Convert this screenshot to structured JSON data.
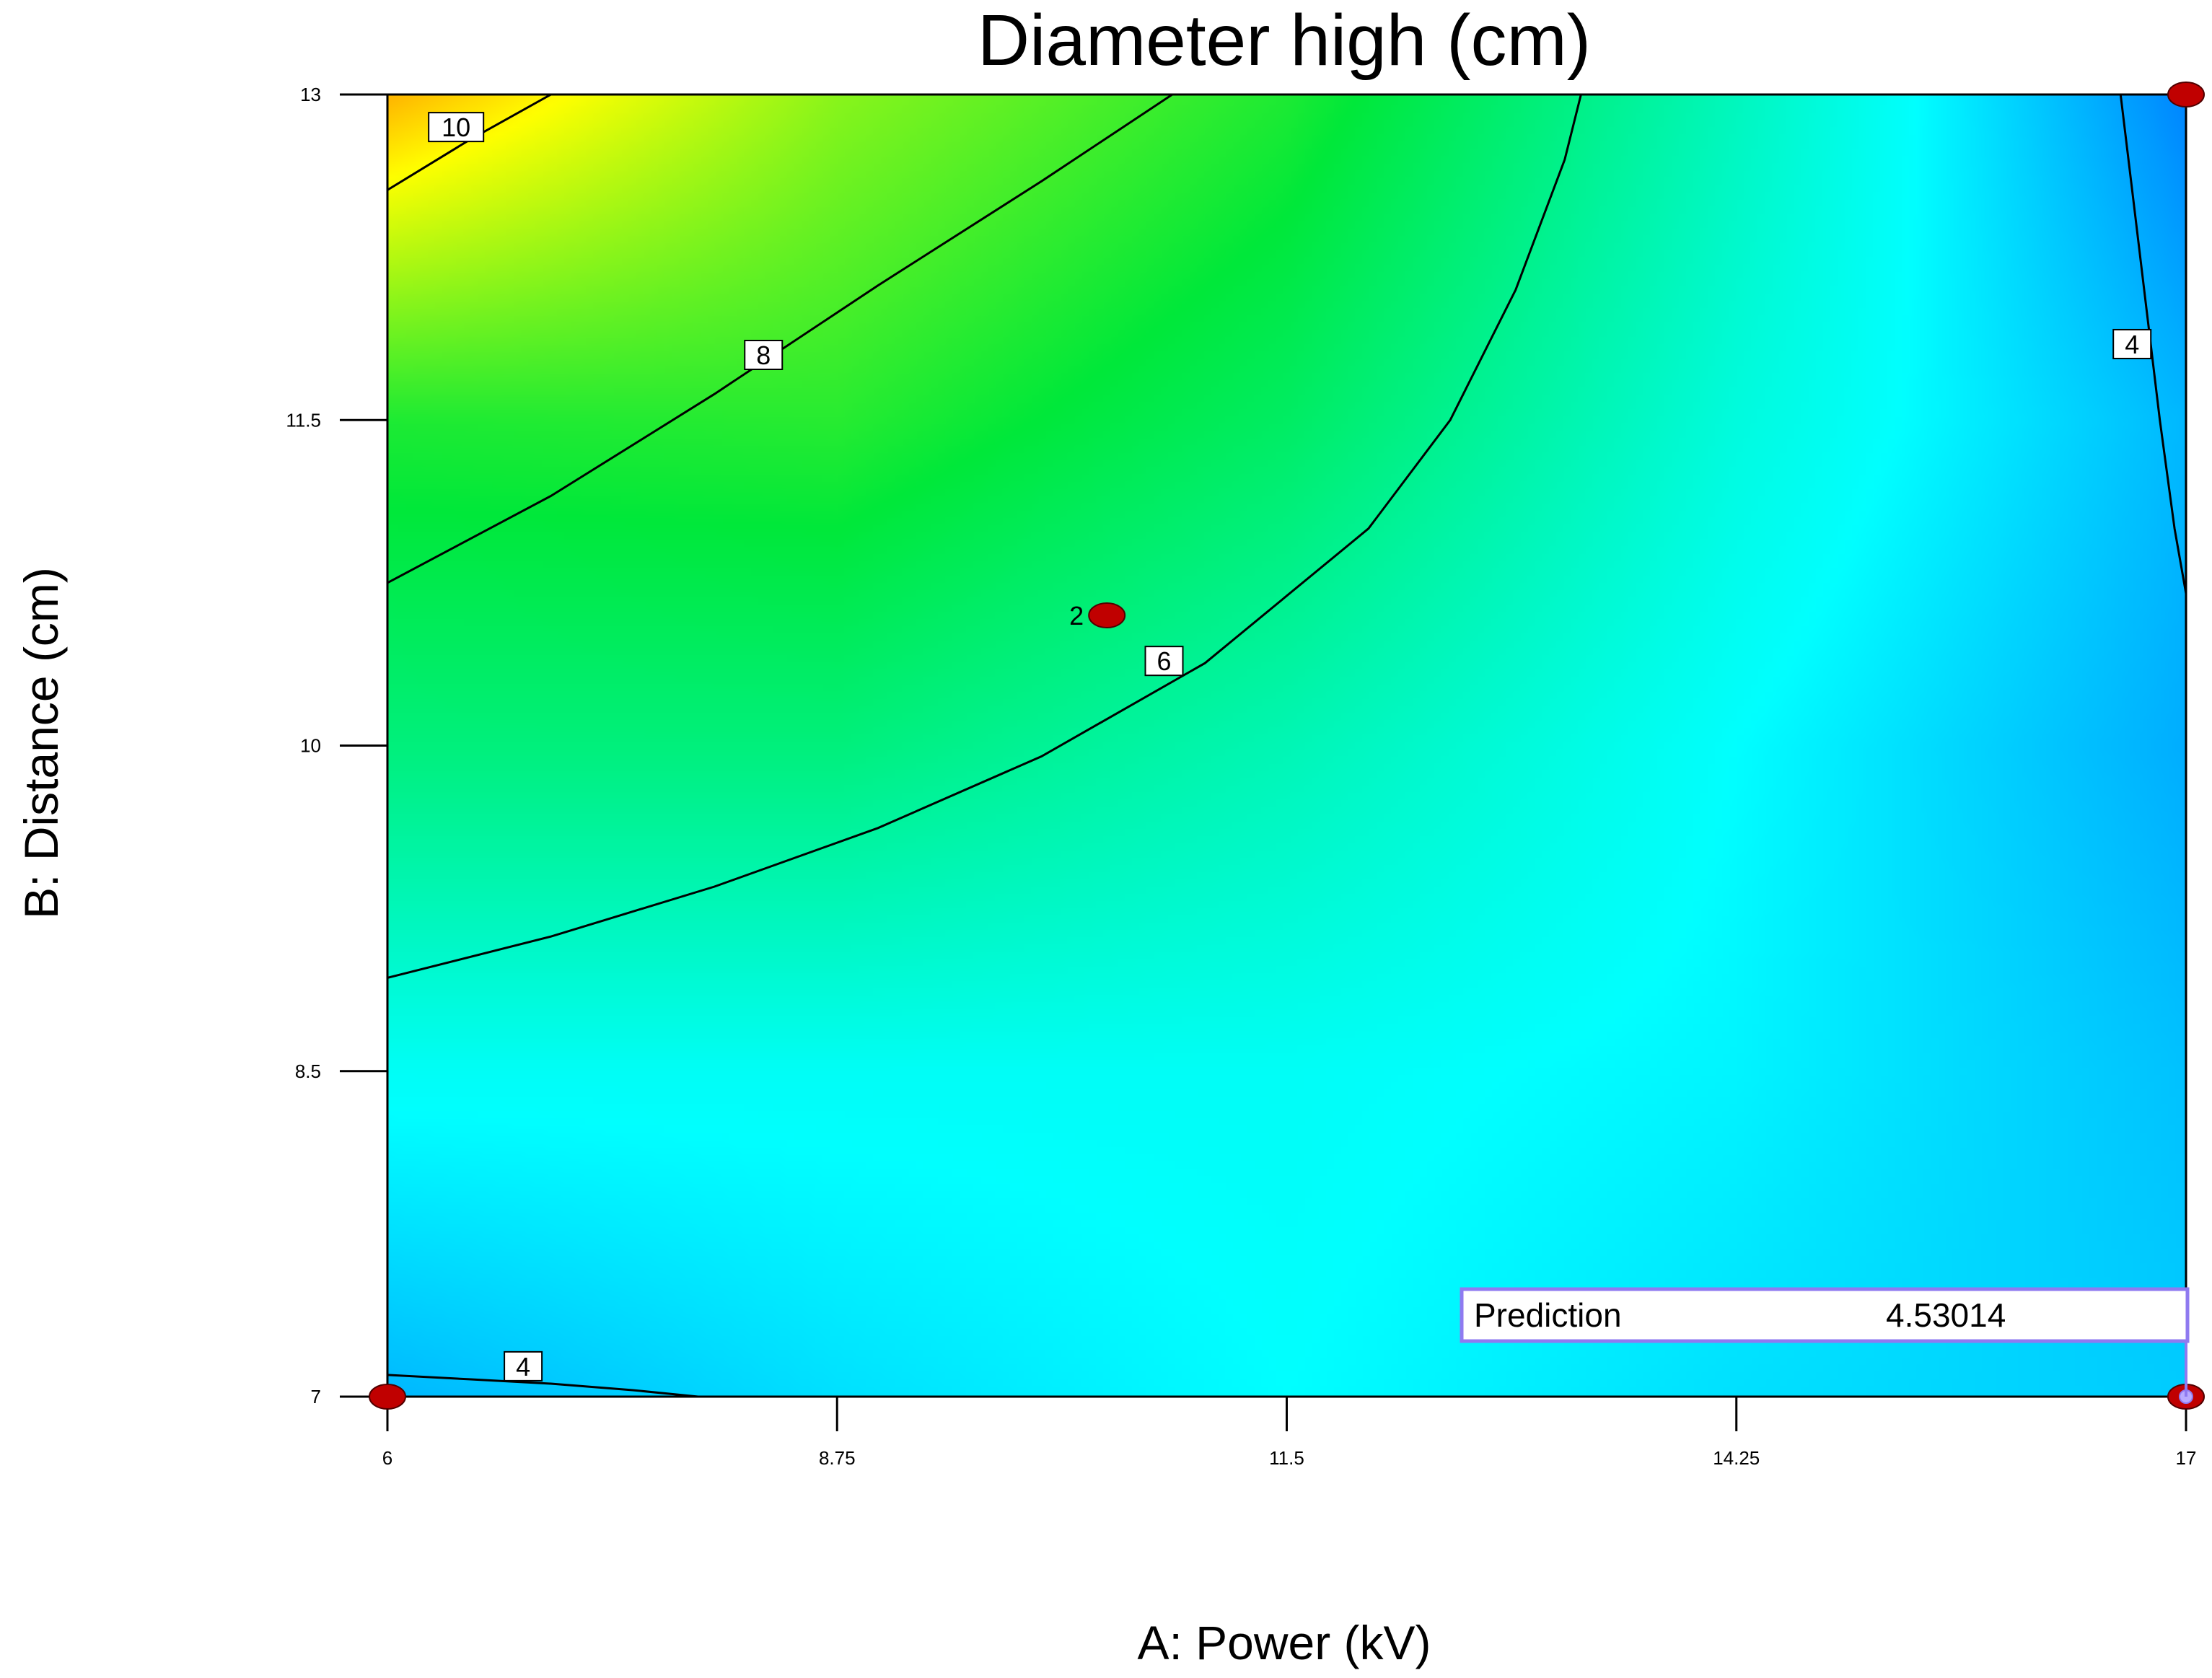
{
  "chart_data": {
    "type": "contour",
    "title": "Diameter high (cm)",
    "xlabel": "A: Power (kV)",
    "ylabel": "B: Distance (cm)",
    "xlim": [
      6,
      17
    ],
    "ylim": [
      7,
      13
    ],
    "x_ticks": [
      "6",
      "8.75",
      "11.5",
      "14.25",
      "17"
    ],
    "y_ticks": [
      "7",
      "8.5",
      "10",
      "11.5",
      "13"
    ],
    "contours": [
      {
        "level": "10",
        "points": [
          [
            6,
            12.56
          ],
          [
            6.5,
            12.79
          ],
          [
            7,
            13.0
          ]
        ],
        "label_at": [
          6.42,
          12.85
        ]
      },
      {
        "level": "8",
        "points": [
          [
            6,
            10.75
          ],
          [
            7,
            11.15
          ],
          [
            8,
            11.62
          ],
          [
            9,
            12.12
          ],
          [
            10,
            12.6
          ],
          [
            10.5,
            12.85
          ],
          [
            10.8,
            13.0
          ]
        ],
        "label_at": [
          8.3,
          11.8
        ]
      },
      {
        "level": "6",
        "points": [
          [
            6,
            8.93
          ],
          [
            7,
            9.12
          ],
          [
            8,
            9.35
          ],
          [
            9,
            9.62
          ],
          [
            10,
            9.95
          ],
          [
            11,
            10.38
          ],
          [
            12,
            11.0
          ],
          [
            12.5,
            11.5
          ],
          [
            12.9,
            12.1
          ],
          [
            13.2,
            12.7
          ],
          [
            13.3,
            13.0
          ]
        ],
        "label_at": [
          10.75,
          10.39
        ]
      },
      {
        "level": "4",
        "points": [
          [
            16.6,
            13.0
          ],
          [
            16.68,
            12.5
          ],
          [
            16.76,
            12.0
          ],
          [
            16.84,
            11.5
          ],
          [
            16.93,
            11.0
          ],
          [
            17,
            10.7
          ]
        ],
        "label_at": [
          16.67,
          11.85
        ]
      },
      {
        "level": "4",
        "points": [
          [
            6,
            7.1
          ],
          [
            6.5,
            7.08
          ],
          [
            7,
            7.06
          ],
          [
            7.5,
            7.03
          ],
          [
            7.9,
            7.0
          ]
        ],
        "label_at": [
          6.83,
          7.14
        ]
      }
    ],
    "design_points": [
      {
        "x": 6,
        "y": 7,
        "label": ""
      },
      {
        "x": 17,
        "y": 7,
        "label": ""
      },
      {
        "x": 17,
        "y": 13,
        "label": ""
      },
      {
        "x": 10.4,
        "y": 10.6,
        "label": "2"
      }
    ],
    "prediction": {
      "label": "Prediction",
      "value": "4.53014",
      "at": [
        17,
        7
      ]
    },
    "colorscale": [
      "#0070ff",
      "#00ffff",
      "#00e83a",
      "#ffff00",
      "#ffa000"
    ],
    "color_field": {
      "x": [
        6,
        8.75,
        11.5,
        14.25,
        17
      ],
      "y": [
        7,
        8.5,
        10,
        11.5,
        13
      ],
      "values": [
        [
          4.3,
          4.7,
          5.0,
          4.7,
          4.5
        ],
        [
          5.1,
          5.1,
          5.1,
          4.9,
          4.4
        ],
        [
          6.6,
          6.6,
          5.9,
          5.0,
          4.2
        ],
        [
          7.7,
          7.8,
          6.9,
          5.4,
          4.3
        ],
        [
          10.8,
          8.8,
          7.7,
          5.8,
          3.8
        ]
      ]
    }
  }
}
